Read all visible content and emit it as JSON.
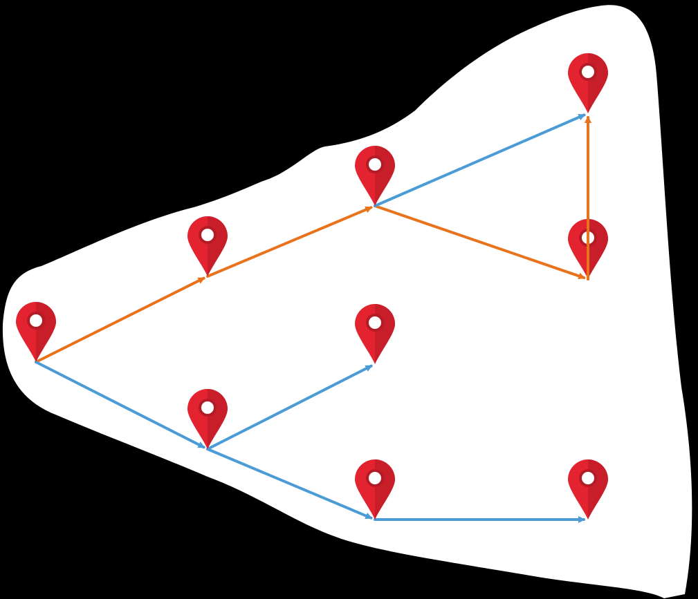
{
  "diagram": {
    "type": "route-graph",
    "background_color": "#000000",
    "region_color": "#ffffff",
    "colors": {
      "pin": "#e3232f",
      "pin_shade": "#b31b26",
      "pin_hole": "#ffffff",
      "route_orange": "#e8731c",
      "route_blue": "#4a9bd6"
    },
    "nodes": [
      {
        "id": "A",
        "icon": "map-pin-icon"
      },
      {
        "id": "B",
        "icon": "map-pin-icon"
      },
      {
        "id": "C",
        "icon": "map-pin-icon"
      },
      {
        "id": "D",
        "icon": "map-pin-icon"
      },
      {
        "id": "E",
        "icon": "map-pin-icon"
      },
      {
        "id": "F",
        "icon": "map-pin-icon"
      },
      {
        "id": "G",
        "icon": "map-pin-icon"
      },
      {
        "id": "H",
        "icon": "map-pin-icon"
      },
      {
        "id": "I",
        "icon": "map-pin-icon"
      },
      {
        "id": "J",
        "icon": "map-pin-icon"
      }
    ],
    "edges": [
      {
        "from": "A",
        "to": "B",
        "route": "orange"
      },
      {
        "from": "B",
        "to": "C",
        "route": "orange"
      },
      {
        "from": "C",
        "to": "E",
        "route": "orange"
      },
      {
        "from": "E",
        "to": "D",
        "route": "orange"
      },
      {
        "from": "C",
        "to": "D",
        "route": "blue"
      },
      {
        "from": "A",
        "to": "G",
        "route": "blue"
      },
      {
        "from": "G",
        "to": "F",
        "route": "blue"
      },
      {
        "from": "G",
        "to": "H",
        "route": "blue"
      },
      {
        "from": "H",
        "to": "I",
        "route": "blue"
      }
    ]
  }
}
